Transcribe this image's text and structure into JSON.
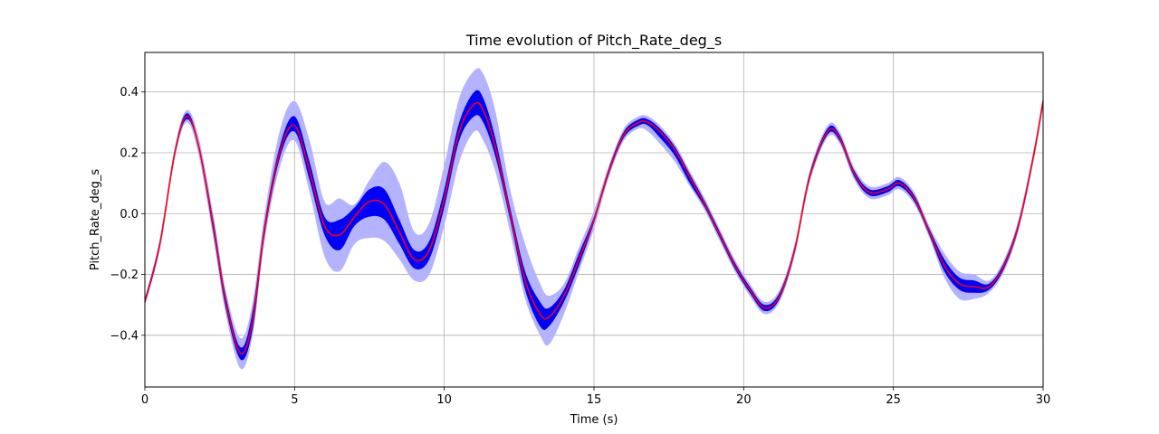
{
  "chart_data": {
    "type": "line",
    "title": "Time evolution of Pitch_Rate_deg_s",
    "xlabel": "Time (s)",
    "ylabel": "Pitch_Rate_deg_s",
    "xlim": [
      0,
      30
    ],
    "ylim": [
      -0.57,
      0.53
    ],
    "xticks": [
      0,
      5,
      10,
      15,
      20,
      25,
      30
    ],
    "yticks": [
      -0.4,
      -0.2,
      0.0,
      0.2,
      0.4
    ],
    "ytick_labels": [
      "−0.4",
      "−0.2",
      "0.0",
      "0.2",
      "0.4"
    ],
    "grid": true,
    "colors": {
      "mean": "#ff0000",
      "inner_band": "#0000ff",
      "outer_band": "#b3b3ff"
    },
    "x": [
      0,
      0.5,
      1.0,
      1.4,
      1.8,
      2.3,
      2.7,
      3.2,
      3.6,
      4.0,
      4.5,
      5.0,
      5.5,
      6.0,
      6.5,
      7.0,
      7.5,
      8.0,
      8.5,
      9.0,
      9.5,
      10.0,
      10.5,
      11.0,
      11.3,
      11.7,
      12.2,
      12.7,
      13.2,
      13.5,
      14.0,
      14.5,
      15.0,
      15.5,
      16.0,
      16.5,
      16.8,
      17.2,
      17.7,
      18.2,
      18.7,
      19.2,
      19.7,
      20.2,
      20.7,
      21.2,
      21.7,
      22.2,
      22.8,
      23.2,
      23.7,
      24.2,
      24.8,
      25.2,
      25.7,
      26.2,
      26.7,
      27.2,
      27.7,
      28.2,
      28.7,
      29.2,
      29.7,
      30.0
    ],
    "series": [
      {
        "kind": "mean",
        "values": [
          -0.29,
          -0.1,
          0.2,
          0.32,
          0.22,
          -0.05,
          -0.29,
          -0.46,
          -0.35,
          -0.05,
          0.2,
          0.29,
          0.14,
          -0.04,
          -0.07,
          -0.01,
          0.04,
          0.03,
          -0.06,
          -0.15,
          -0.12,
          0.05,
          0.27,
          0.36,
          0.34,
          0.22,
          0.0,
          -0.22,
          -0.33,
          -0.34,
          -0.27,
          -0.15,
          -0.02,
          0.14,
          0.26,
          0.3,
          0.3,
          0.27,
          0.21,
          0.12,
          0.03,
          -0.07,
          -0.17,
          -0.25,
          -0.31,
          -0.27,
          -0.12,
          0.12,
          0.27,
          0.25,
          0.13,
          0.07,
          0.08,
          0.1,
          0.05,
          -0.06,
          -0.17,
          -0.23,
          -0.24,
          -0.24,
          -0.17,
          -0.03,
          0.2,
          0.37
        ]
      },
      {
        "kind": "inner_band",
        "lower": [
          -0.3,
          -0.11,
          0.19,
          0.31,
          0.21,
          -0.07,
          -0.31,
          -0.48,
          -0.38,
          -0.07,
          0.18,
          0.27,
          0.11,
          -0.07,
          -0.12,
          -0.04,
          -0.01,
          -0.02,
          -0.1,
          -0.18,
          -0.15,
          0.02,
          0.24,
          0.32,
          0.3,
          0.19,
          -0.02,
          -0.25,
          -0.37,
          -0.37,
          -0.29,
          -0.17,
          -0.03,
          0.13,
          0.25,
          0.29,
          0.29,
          0.25,
          0.19,
          0.1,
          0.02,
          -0.08,
          -0.18,
          -0.26,
          -0.32,
          -0.28,
          -0.13,
          0.11,
          0.26,
          0.24,
          0.12,
          0.06,
          0.07,
          0.09,
          0.04,
          -0.07,
          -0.19,
          -0.25,
          -0.26,
          -0.25,
          -0.18,
          -0.04,
          0.19,
          0.36
        ],
        "upper": [
          -0.28,
          -0.09,
          0.21,
          0.33,
          0.23,
          -0.03,
          -0.27,
          -0.44,
          -0.32,
          -0.03,
          0.22,
          0.32,
          0.17,
          -0.01,
          -0.02,
          0.02,
          0.08,
          0.08,
          -0.02,
          -0.12,
          -0.09,
          0.08,
          0.3,
          0.4,
          0.38,
          0.25,
          0.02,
          -0.19,
          -0.29,
          -0.31,
          -0.25,
          -0.13,
          -0.01,
          0.15,
          0.27,
          0.31,
          0.31,
          0.28,
          0.22,
          0.13,
          0.04,
          -0.06,
          -0.16,
          -0.24,
          -0.3,
          -0.26,
          -0.11,
          0.13,
          0.28,
          0.26,
          0.14,
          0.08,
          0.09,
          0.11,
          0.06,
          -0.05,
          -0.15,
          -0.21,
          -0.22,
          -0.23,
          -0.16,
          -0.02,
          0.21,
          0.38
        ]
      },
      {
        "kind": "outer_band",
        "lower": [
          -0.3,
          -0.12,
          0.18,
          0.3,
          0.19,
          -0.09,
          -0.33,
          -0.51,
          -0.4,
          -0.09,
          0.15,
          0.24,
          0.07,
          -0.14,
          -0.19,
          -0.1,
          -0.08,
          -0.09,
          -0.15,
          -0.22,
          -0.2,
          -0.04,
          0.17,
          0.27,
          0.24,
          0.14,
          -0.06,
          -0.28,
          -0.4,
          -0.43,
          -0.33,
          -0.19,
          -0.05,
          0.12,
          0.24,
          0.28,
          0.27,
          0.23,
          0.17,
          0.09,
          0.01,
          -0.09,
          -0.19,
          -0.27,
          -0.33,
          -0.29,
          -0.14,
          0.1,
          0.25,
          0.23,
          0.11,
          0.05,
          0.06,
          0.08,
          0.03,
          -0.08,
          -0.21,
          -0.28,
          -0.28,
          -0.26,
          -0.19,
          -0.05,
          0.18,
          0.35
        ],
        "upper": [
          -0.28,
          -0.08,
          0.22,
          0.34,
          0.25,
          -0.01,
          -0.25,
          -0.41,
          -0.29,
          0.0,
          0.27,
          0.37,
          0.24,
          0.04,
          0.05,
          0.03,
          0.11,
          0.17,
          0.1,
          -0.06,
          -0.03,
          0.16,
          0.38,
          0.47,
          0.46,
          0.34,
          0.08,
          -0.1,
          -0.23,
          -0.27,
          -0.23,
          -0.11,
          0.01,
          0.16,
          0.28,
          0.32,
          0.32,
          0.29,
          0.23,
          0.14,
          0.05,
          -0.05,
          -0.15,
          -0.23,
          -0.29,
          -0.25,
          -0.1,
          0.14,
          0.29,
          0.27,
          0.15,
          0.09,
          0.1,
          0.12,
          0.07,
          -0.04,
          -0.13,
          -0.19,
          -0.2,
          -0.22,
          -0.15,
          -0.01,
          0.22,
          0.39
        ]
      }
    ]
  }
}
